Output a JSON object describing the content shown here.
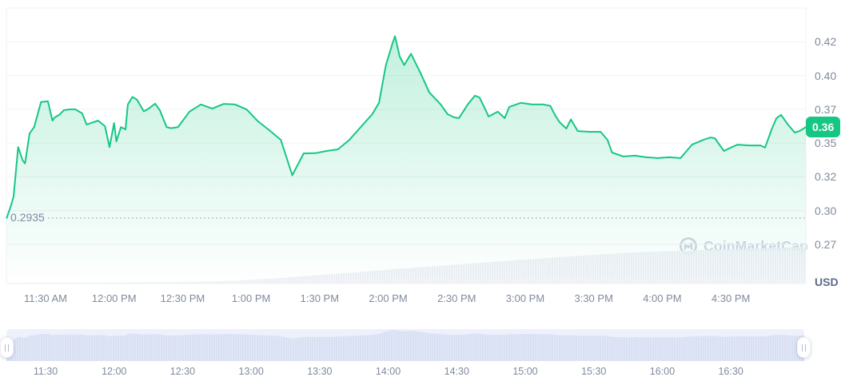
{
  "watermark": {
    "text": "CoinMarketCap"
  },
  "chart_data": {
    "type": "area",
    "unit": "USD",
    "current_price_label": "0.36",
    "min_price_label": "0.2935",
    "min_price": 0.2935,
    "y_axis": {
      "position": "right",
      "grid": true,
      "tick_values": [
        0.42,
        0.4,
        0.37,
        0.35,
        0.32,
        0.3,
        0.27
      ],
      "tick_labels": [
        "0.42",
        "0.40",
        "0.37",
        "0.35",
        "0.32",
        "0.30",
        "0.27"
      ]
    },
    "x_axis": {
      "tick_times": [
        "11:30",
        "12:00",
        "12:30",
        "13:00",
        "13:30",
        "14:00",
        "14:30",
        "15:00",
        "15:30",
        "16:00",
        "16:30"
      ],
      "main_tick_labels": [
        "11:30 AM",
        "12:00 PM",
        "12:30 PM",
        "1:00 PM",
        "1:30 PM",
        "2:00 PM",
        "2:30 PM",
        "3:00 PM",
        "3:30 PM",
        "4:00 PM",
        "4:30 PM"
      ],
      "brush_tick_labels": [
        "11:30",
        "12:00",
        "12:30",
        "13:00",
        "13:30",
        "14:00",
        "14:30",
        "15:00",
        "15:30",
        "16:00",
        "16:30"
      ]
    },
    "series": [
      {
        "name": "price",
        "unit": "USD",
        "points": [
          [
            "11:13",
            0.2935
          ],
          [
            "11:15",
            0.3035
          ],
          [
            "11:16",
            0.3084
          ],
          [
            "11:18",
            0.3465
          ],
          [
            "11:20",
            0.3346
          ],
          [
            "11:21",
            0.3319
          ],
          [
            "11:23",
            0.3557
          ],
          [
            "11:25",
            0.3595
          ],
          [
            "11:28",
            0.3764
          ],
          [
            "11:31",
            0.3771
          ],
          [
            "11:33",
            0.3633
          ],
          [
            "11:34",
            0.3652
          ],
          [
            "11:36",
            0.3667
          ],
          [
            "11:38",
            0.3695
          ],
          [
            "11:41",
            0.37
          ],
          [
            "11:43",
            0.37
          ],
          [
            "11:46",
            0.3676
          ],
          [
            "11:48",
            0.361
          ],
          [
            "11:51",
            0.3624
          ],
          [
            "11:53",
            0.3633
          ],
          [
            "11:56",
            0.36
          ],
          [
            "11:58",
            0.3465
          ],
          [
            "12:00",
            0.3619
          ],
          [
            "12:01",
            0.351
          ],
          [
            "12:03",
            0.3595
          ],
          [
            "12:05",
            0.3581
          ],
          [
            "12:06",
            0.3743
          ],
          [
            "12:08",
            0.381
          ],
          [
            "12:10",
            0.3786
          ],
          [
            "12:13",
            0.3688
          ],
          [
            "12:15",
            0.3705
          ],
          [
            "12:18",
            0.375
          ],
          [
            "12:20",
            0.3695
          ],
          [
            "12:23",
            0.3595
          ],
          [
            "12:25",
            0.3588
          ],
          [
            "12:28",
            0.3595
          ],
          [
            "12:33",
            0.3686
          ],
          [
            "12:38",
            0.3743
          ],
          [
            "12:43",
            0.3707
          ],
          [
            "12:48",
            0.3748
          ],
          [
            "12:53",
            0.3743
          ],
          [
            "12:58",
            0.37
          ],
          [
            "13:03",
            0.3629
          ],
          [
            "13:08",
            0.3576
          ],
          [
            "13:13",
            0.3519
          ],
          [
            "13:18",
            0.3214
          ],
          [
            "13:23",
            0.3409
          ],
          [
            "13:28",
            0.341
          ],
          [
            "13:33",
            0.343
          ],
          [
            "13:38",
            0.3444
          ],
          [
            "13:43",
            0.3519
          ],
          [
            "13:48",
            0.3595
          ],
          [
            "13:53",
            0.3671
          ],
          [
            "13:56",
            0.3757
          ],
          [
            "13:59",
            0.4062
          ],
          [
            "14:02",
            0.4195
          ],
          [
            "14:03",
            0.4233
          ],
          [
            "14:05",
            0.4114
          ],
          [
            "14:07",
            0.4062
          ],
          [
            "14:10",
            0.4129
          ],
          [
            "14:14",
            0.4019
          ],
          [
            "14:18",
            0.385
          ],
          [
            "14:23",
            0.3743
          ],
          [
            "14:26",
            0.3671
          ],
          [
            "14:29",
            0.3652
          ],
          [
            "14:31",
            0.3648
          ],
          [
            "14:35",
            0.3748
          ],
          [
            "14:38",
            0.3821
          ],
          [
            "14:40",
            0.3805
          ],
          [
            "14:44",
            0.3657
          ],
          [
            "14:48",
            0.3686
          ],
          [
            "14:51",
            0.3648
          ],
          [
            "14:53",
            0.3721
          ],
          [
            "14:58",
            0.3757
          ],
          [
            "15:03",
            0.3743
          ],
          [
            "15:08",
            0.3743
          ],
          [
            "15:11",
            0.373
          ],
          [
            "15:13",
            0.3667
          ],
          [
            "15:15",
            0.3624
          ],
          [
            "15:18",
            0.3586
          ],
          [
            "15:20",
            0.364
          ],
          [
            "15:23",
            0.3571
          ],
          [
            "15:28",
            0.3567
          ],
          [
            "15:33",
            0.3567
          ],
          [
            "15:36",
            0.3519
          ],
          [
            "15:38",
            0.3416
          ],
          [
            "15:43",
            0.3381
          ],
          [
            "15:48",
            0.3388
          ],
          [
            "15:53",
            0.3374
          ],
          [
            "15:58",
            0.3367
          ],
          [
            "16:03",
            0.3374
          ],
          [
            "16:08",
            0.3367
          ],
          [
            "16:13",
            0.3486
          ],
          [
            "16:18",
            0.3519
          ],
          [
            "16:21",
            0.3533
          ],
          [
            "16:23",
            0.3529
          ],
          [
            "16:27",
            0.343
          ],
          [
            "16:30",
            0.346
          ],
          [
            "16:33",
            0.3486
          ],
          [
            "16:38",
            0.3479
          ],
          [
            "16:43",
            0.3479
          ],
          [
            "16:45",
            0.346
          ],
          [
            "16:48",
            0.3586
          ],
          [
            "16:50",
            0.3648
          ],
          [
            "16:52",
            0.3667
          ],
          [
            "16:55",
            0.361
          ],
          [
            "16:58",
            0.3562
          ],
          [
            "17:00",
            0.3571
          ],
          [
            "17:03",
            0.3595
          ]
        ]
      }
    ],
    "volume_profile": {
      "note": "normalized silhouette of the light-gray volume area along the bottom",
      "points": [
        [
          0,
          0.02
        ],
        [
          0.1,
          0.025
        ],
        [
          0.2,
          0.04
        ],
        [
          0.25,
          0.055
        ],
        [
          0.29,
          0.08
        ],
        [
          0.34,
          0.15
        ],
        [
          0.39,
          0.23
        ],
        [
          0.44,
          0.31
        ],
        [
          0.49,
          0.4
        ],
        [
          0.54,
          0.48
        ],
        [
          0.59,
          0.56
        ],
        [
          0.64,
          0.64
        ],
        [
          0.69,
          0.72
        ],
        [
          0.74,
          0.79
        ],
        [
          0.79,
          0.85
        ],
        [
          0.84,
          0.89
        ],
        [
          0.89,
          0.93
        ],
        [
          0.94,
          0.96
        ],
        [
          1,
          1
        ]
      ]
    },
    "colors": {
      "line": "#16c784",
      "badge": "#16c784",
      "grid": "#eff2f5",
      "axis_text": "#808a9d",
      "watermark": "#cdd4e3",
      "volume": "#e9edf3",
      "brush_band": "#edf1fb",
      "brush_area": "#d9e0f3"
    }
  }
}
